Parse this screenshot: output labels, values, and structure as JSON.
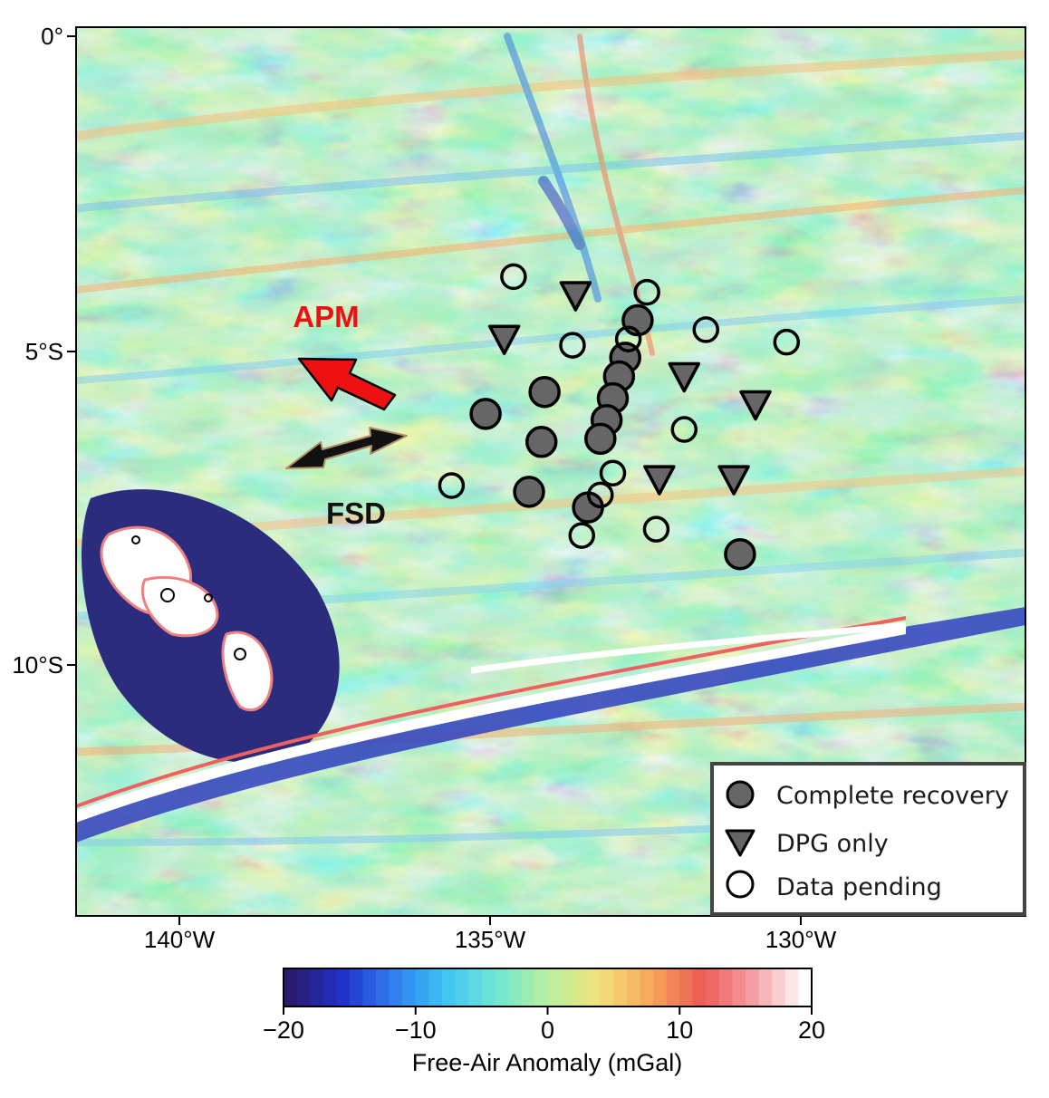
{
  "map": {
    "ylabels": [
      "0°",
      "5°S",
      "10°S"
    ],
    "xlabels": [
      "140°W",
      "135°W",
      "130°W"
    ],
    "extent": {
      "lon_west": -141.7,
      "lon_east": -126.4,
      "lat_north": 0.15,
      "lat_south": -14.1
    }
  },
  "annotations": {
    "apm_label": "APM",
    "fsd_label": "FSD",
    "apm_color": "#ee1111",
    "fsd_color": "#111111"
  },
  "legend": {
    "complete": "Complete recovery",
    "dpg": "DPG only",
    "pending": "Data pending"
  },
  "colorbar": {
    "title": "Free-Air Anomaly (mGal)",
    "ticks": [
      "−20",
      "−10",
      "0",
      "10",
      "20"
    ],
    "min": -20,
    "max": 20,
    "colors": [
      "#2b1a6e",
      "#1f30c8",
      "#2f7ff0",
      "#3fc3f5",
      "#6fe6d4",
      "#b8f0a0",
      "#f3e27a",
      "#f6a85a",
      "#ee5a55",
      "#f3a0a5",
      "#ffffff"
    ]
  },
  "stations": {
    "complete": [
      [
        -132.65,
        -4.55
      ],
      [
        -132.85,
        -5.15
      ],
      [
        -132.95,
        -5.45
      ],
      [
        -133.05,
        -5.8
      ],
      [
        -133.15,
        -6.15
      ],
      [
        -133.25,
        -6.45
      ],
      [
        -133.45,
        -7.55
      ],
      [
        -134.15,
        -5.7
      ],
      [
        -134.2,
        -6.5
      ],
      [
        -134.4,
        -7.3
      ],
      [
        -135.1,
        -6.05
      ],
      [
        -131.0,
        -8.3
      ]
    ],
    "dpg": [
      [
        -133.65,
        -4.15
      ],
      [
        -134.8,
        -4.85
      ],
      [
        -131.9,
        -5.45
      ],
      [
        -130.75,
        -5.9
      ],
      [
        -132.3,
        -7.1
      ],
      [
        -131.1,
        -7.1
      ]
    ],
    "pending": [
      [
        -134.65,
        -3.85
      ],
      [
        -132.5,
        -4.1
      ],
      [
        -133.7,
        -4.95
      ],
      [
        -132.8,
        -4.85
      ],
      [
        -131.55,
        -4.7
      ],
      [
        -130.25,
        -4.9
      ],
      [
        -133.05,
        -7.0
      ],
      [
        -133.25,
        -7.35
      ],
      [
        -131.9,
        -6.3
      ],
      [
        -133.55,
        -8.0
      ],
      [
        -132.35,
        -7.9
      ],
      [
        -135.65,
        -7.2
      ]
    ]
  }
}
